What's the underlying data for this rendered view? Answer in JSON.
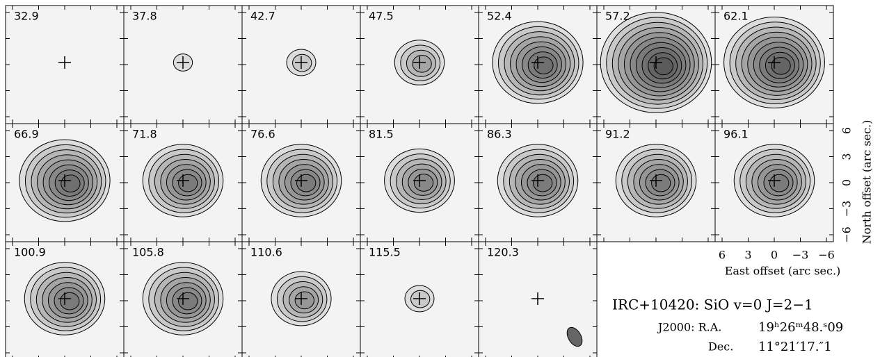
{
  "chart_data": {
    "type": "channel-map",
    "title": "IRC+10420: SiO v=0 J=2−1",
    "ra_label": "J2000: R.A.",
    "ra": "19ʰ26ᵐ48.ˢ09",
    "dec_label": "Dec.",
    "dec": "11°21′17.″1",
    "xlabel": "East offset (arc sec.)",
    "ylabel": "North offset (arc sec.)",
    "xlim": [
      6.8,
      -6.8
    ],
    "ylim": [
      -6.8,
      6.8
    ],
    "xticks": [
      6,
      3,
      0,
      {
        "value": -3,
        "label": "−3"
      },
      {
        "value": -6,
        "label": "−6"
      }
    ],
    "yticks": [
      {
        "value": -6,
        "label": "−6"
      },
      {
        "value": -3,
        "label": "−3"
      },
      0,
      3,
      6
    ],
    "velocities": [
      32.9,
      37.8,
      42.7,
      47.5,
      52.4,
      57.2,
      62.1,
      66.9,
      71.8,
      76.6,
      81.5,
      86.3,
      91.2,
      96.1,
      100.9,
      105.8,
      110.6,
      115.5,
      120.3
    ],
    "contours": [
      0,
      1,
      2,
      4,
      8,
      10,
      9,
      8,
      7,
      7,
      6,
      7,
      7,
      7,
      7,
      7,
      5,
      2,
      0
    ]
  }
}
